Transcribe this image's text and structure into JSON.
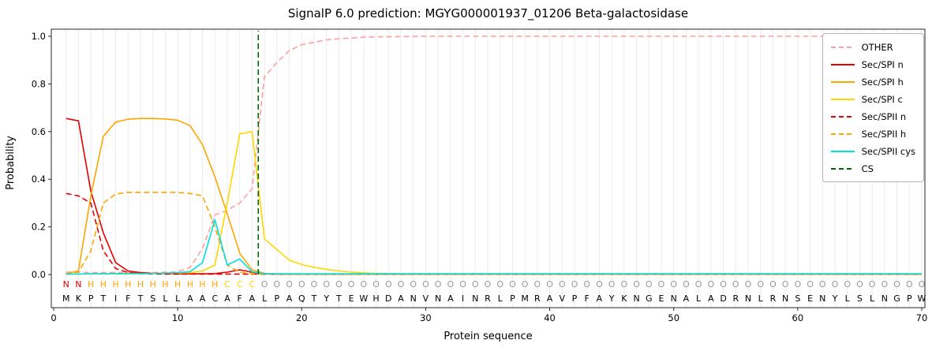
{
  "chart_data": {
    "type": "line",
    "title": "SignalP 6.0 prediction: MGYG000001937_01206 Beta-galactosidase",
    "xlabel": "Protein sequence",
    "ylabel": "Probability",
    "ylim": [
      -0.14,
      1.03
    ],
    "xlim": [
      -0.2,
      70.3
    ],
    "grid": true,
    "legend_position": "upper right",
    "xticks": [
      0,
      10,
      20,
      30,
      40,
      50,
      60,
      70
    ],
    "yticks": [
      "0.0",
      "0.2",
      "0.4",
      "0.6",
      "0.8",
      "1.0"
    ],
    "grid_color": "#ebebeb",
    "sequence_color": "#000000",
    "sequence": "MKPTIFTSLLAACAFALPAQTYTEWHDANVNAINRLPMRAVPFAYKNGENALADRNLRNSENYLSLNGPW",
    "region_labels": "NNHHHHHHHHHHHCCCOOOOOOOOOOOOOOOOOOOOOOOOOOOOOOOOOOOOOOOOOOOOOOOOOOOOOO",
    "label_colors": {
      "N": "#e50000",
      "H": "#ffa500",
      "C": "#ffd700",
      "O": "#9a9a9a"
    },
    "cs": {
      "name": "CS",
      "color": "#006400",
      "dash": true,
      "position": 16.5
    },
    "series": [
      {
        "name": "OTHER",
        "color": "#ff9e9e",
        "dash": true,
        "values": [
          0.01,
          0.01,
          0.008,
          0.008,
          0.008,
          0.008,
          0.008,
          0.008,
          0.01,
          0.012,
          0.03,
          0.11,
          0.25,
          0.27,
          0.3,
          0.36,
          0.83,
          0.89,
          0.94,
          0.965,
          0.975,
          0.985,
          0.99,
          0.993,
          0.996,
          0.997,
          0.998,
          0.999,
          0.999,
          1.0,
          1.0,
          1.0,
          1.0,
          1.0,
          1.0,
          1.0,
          1.0,
          1.0,
          1.0,
          1.0,
          1.0,
          1.0,
          1.0,
          1.0,
          1.0,
          1.0,
          1.0,
          1.0,
          1.0,
          1.0,
          1.0,
          1.0,
          1.0,
          1.0,
          1.0,
          1.0,
          1.0,
          1.0,
          1.0,
          1.0,
          1.0,
          1.0,
          1.0,
          1.0,
          1.0,
          1.0,
          1.0,
          1.0,
          1.0,
          1.0
        ]
      },
      {
        "name": "Sec/SPI n",
        "color": "#e50000",
        "dash": false,
        "values": [
          0.655,
          0.645,
          0.35,
          0.175,
          0.05,
          0.015,
          0.008,
          0.005,
          0.004,
          0.003,
          0.003,
          0.003,
          0.004,
          0.01,
          0.02,
          0.01,
          0.003,
          0.002,
          0.002,
          0.002,
          0.002,
          0.002,
          0.002,
          0.002,
          0.002,
          0.002,
          0.002,
          0.002,
          0.002,
          0.002,
          0.002,
          0.002,
          0.002,
          0.002,
          0.002,
          0.002,
          0.002,
          0.002,
          0.002,
          0.002,
          0.002,
          0.002,
          0.002,
          0.002,
          0.002,
          0.002,
          0.002,
          0.002,
          0.002,
          0.002,
          0.002,
          0.002,
          0.002,
          0.002,
          0.002,
          0.002,
          0.002,
          0.002,
          0.002,
          0.002,
          0.002,
          0.002,
          0.002,
          0.002,
          0.002,
          0.002,
          0.002,
          0.002,
          0.002,
          0.002
        ]
      },
      {
        "name": "Sec/SPI h",
        "color": "#ffa500",
        "dash": false,
        "values": [
          0.004,
          0.015,
          0.33,
          0.58,
          0.64,
          0.652,
          0.655,
          0.655,
          0.653,
          0.648,
          0.625,
          0.545,
          0.41,
          0.255,
          0.09,
          0.02,
          0.005,
          0.003,
          0.002,
          0.002,
          0.002,
          0.002,
          0.002,
          0.002,
          0.002,
          0.002,
          0.002,
          0.002,
          0.002,
          0.002,
          0.002,
          0.002,
          0.002,
          0.002,
          0.002,
          0.002,
          0.002,
          0.002,
          0.002,
          0.002,
          0.002,
          0.002,
          0.002,
          0.002,
          0.002,
          0.002,
          0.002,
          0.002,
          0.002,
          0.002,
          0.002,
          0.002,
          0.002,
          0.002,
          0.002,
          0.002,
          0.002,
          0.002,
          0.002,
          0.002,
          0.002,
          0.002,
          0.002,
          0.002,
          0.002,
          0.002,
          0.002,
          0.002,
          0.002,
          0.002
        ]
      },
      {
        "name": "Sec/SPI c",
        "color": "#ffd700",
        "dash": false,
        "values": [
          0.002,
          0.002,
          0.003,
          0.003,
          0.003,
          0.003,
          0.003,
          0.004,
          0.005,
          0.006,
          0.008,
          0.015,
          0.04,
          0.3,
          0.59,
          0.6,
          0.15,
          0.105,
          0.06,
          0.042,
          0.03,
          0.022,
          0.015,
          0.01,
          0.007,
          0.005,
          0.004,
          0.003,
          0.003,
          0.003,
          0.003,
          0.003,
          0.003,
          0.003,
          0.003,
          0.003,
          0.003,
          0.003,
          0.003,
          0.003,
          0.003,
          0.003,
          0.003,
          0.003,
          0.003,
          0.003,
          0.003,
          0.003,
          0.003,
          0.003,
          0.003,
          0.003,
          0.003,
          0.003,
          0.003,
          0.003,
          0.003,
          0.003,
          0.003,
          0.003,
          0.003,
          0.003,
          0.003,
          0.003,
          0.003,
          0.003,
          0.003,
          0.003,
          0.003,
          0.003
        ]
      },
      {
        "name": "Sec/SPII n",
        "color": "#e50000",
        "dash": true,
        "values": [
          0.34,
          0.33,
          0.3,
          0.1,
          0.025,
          0.008,
          0.004,
          0.003,
          0.002,
          0.002,
          0.002,
          0.002,
          0.002,
          0.002,
          0.002,
          0.002,
          0.002,
          0.002,
          0.002,
          0.002,
          0.002,
          0.002,
          0.002,
          0.002,
          0.002,
          0.002,
          0.002,
          0.002,
          0.002,
          0.002,
          0.002,
          0.002,
          0.002,
          0.002,
          0.002,
          0.002,
          0.002,
          0.002,
          0.002,
          0.002,
          0.002,
          0.002,
          0.002,
          0.002,
          0.002,
          0.002,
          0.002,
          0.002,
          0.002,
          0.002,
          0.002,
          0.002,
          0.002,
          0.002,
          0.002,
          0.002,
          0.002,
          0.002,
          0.002,
          0.002,
          0.002,
          0.002,
          0.002,
          0.002,
          0.002,
          0.002,
          0.002,
          0.002,
          0.002,
          0.002
        ]
      },
      {
        "name": "Sec/SPII h",
        "color": "#ffa500",
        "dash": true,
        "values": [
          0.003,
          0.01,
          0.1,
          0.3,
          0.338,
          0.345,
          0.345,
          0.345,
          0.345,
          0.345,
          0.34,
          0.33,
          0.2,
          0.04,
          0.01,
          0.004,
          0.002,
          0.002,
          0.002,
          0.002,
          0.002,
          0.002,
          0.002,
          0.002,
          0.002,
          0.002,
          0.002,
          0.002,
          0.002,
          0.002,
          0.002,
          0.002,
          0.002,
          0.002,
          0.002,
          0.002,
          0.002,
          0.002,
          0.002,
          0.002,
          0.002,
          0.002,
          0.002,
          0.002,
          0.002,
          0.002,
          0.002,
          0.002,
          0.002,
          0.002,
          0.002,
          0.002,
          0.002,
          0.002,
          0.002,
          0.002,
          0.002,
          0.002,
          0.002,
          0.002,
          0.002,
          0.002,
          0.002,
          0.002,
          0.002,
          0.002,
          0.002,
          0.002,
          0.002,
          0.002
        ]
      },
      {
        "name": "Sec/SPII cys",
        "color": "#00e0e0",
        "dash": false,
        "values": [
          0.002,
          0.002,
          0.003,
          0.003,
          0.004,
          0.004,
          0.004,
          0.005,
          0.006,
          0.008,
          0.012,
          0.05,
          0.23,
          0.04,
          0.065,
          0.012,
          0.004,
          0.003,
          0.003,
          0.003,
          0.003,
          0.003,
          0.003,
          0.003,
          0.003,
          0.003,
          0.003,
          0.003,
          0.003,
          0.003,
          0.003,
          0.003,
          0.003,
          0.003,
          0.003,
          0.003,
          0.003,
          0.003,
          0.003,
          0.003,
          0.003,
          0.003,
          0.003,
          0.003,
          0.003,
          0.003,
          0.003,
          0.003,
          0.003,
          0.003,
          0.003,
          0.003,
          0.003,
          0.003,
          0.003,
          0.003,
          0.003,
          0.003,
          0.003,
          0.003,
          0.003,
          0.003,
          0.003,
          0.003,
          0.003,
          0.003,
          0.003,
          0.003,
          0.003,
          0.003
        ]
      }
    ]
  }
}
